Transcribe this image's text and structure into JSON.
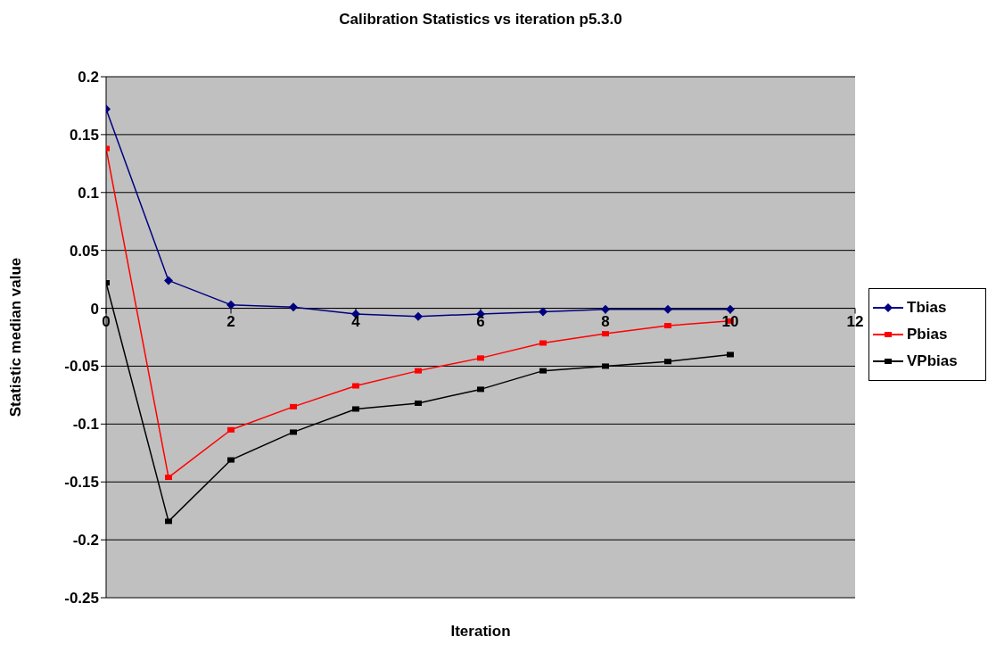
{
  "chart_data": {
    "type": "line",
    "title": "Calibration Statistics vs iteration p5.3.0",
    "xlabel": "Iteration",
    "ylabel": "Statistic median value",
    "x": [
      0,
      1,
      2,
      3,
      4,
      5,
      6,
      7,
      8,
      9,
      10
    ],
    "series": [
      {
        "name": "Tbias",
        "color": "#000080",
        "marker": "diamond",
        "values": [
          0.172,
          0.024,
          0.003,
          0.001,
          -0.005,
          -0.007,
          -0.005,
          -0.003,
          -0.001,
          -0.001,
          -0.001
        ]
      },
      {
        "name": "Pbias",
        "color": "#ff0000",
        "marker": "square",
        "values": [
          0.138,
          -0.146,
          -0.105,
          -0.085,
          -0.067,
          -0.054,
          -0.043,
          -0.03,
          -0.022,
          -0.015,
          -0.011
        ]
      },
      {
        "name": "VPbias",
        "color": "#000000",
        "marker": "square",
        "values": [
          0.022,
          -0.184,
          -0.131,
          -0.107,
          -0.087,
          -0.082,
          -0.07,
          -0.054,
          -0.05,
          -0.046,
          -0.04
        ]
      }
    ],
    "xlim": [
      0,
      12
    ],
    "xticks": [
      0,
      2,
      4,
      6,
      8,
      10,
      12
    ],
    "ylim": [
      -0.25,
      0.2
    ],
    "yticks": [
      -0.25,
      -0.2,
      -0.15,
      -0.1,
      -0.05,
      0,
      0.05,
      0.1,
      0.15,
      0.2
    ],
    "grid": "y",
    "legend": "right",
    "line_style": "solid"
  }
}
